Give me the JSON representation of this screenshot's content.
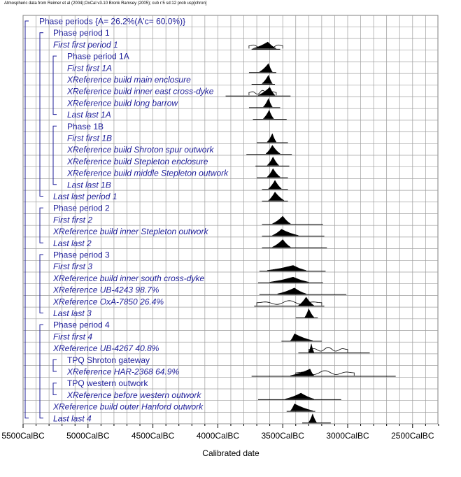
{
  "header_text": "Atmospheric data from Reimer et al (2004);OxCal v3.10 Bronk Ramsey (2005); cub r:5 sd:12 prob usp[chron]",
  "chart_data": {
    "type": "multiple-plot",
    "xlabel": "Calibrated date",
    "xlim": [
      5500,
      2700
    ],
    "xticks": [
      {
        "value": 5500,
        "label": "5500CalBC"
      },
      {
        "value": 5000,
        "label": "5000CalBC"
      },
      {
        "value": 4500,
        "label": "4500CalBC"
      },
      {
        "value": 4000,
        "label": "4000CalBC"
      },
      {
        "value": 3500,
        "label": "3500CalBC"
      },
      {
        "value": 3000,
        "label": "3000CalBC"
      },
      {
        "value": 2500,
        "label": "2500CalBC"
      }
    ],
    "grid": true,
    "rows": [
      {
        "label": "Phase periods {A= 26.2%(A'c= 60.0%)}",
        "italic": false,
        "indent": 0
      },
      {
        "label": "Phase period 1",
        "italic": false,
        "indent": 1
      },
      {
        "label": "First first period 1",
        "italic": true,
        "indent": 1,
        "peak": 3615,
        "start": 3730,
        "end": 3550,
        "prior_start": 3760,
        "prior_end": 3500,
        "bar_start": 3740,
        "bar_end": 3520
      },
      {
        "label": "Phase period 1A",
        "italic": false,
        "indent": 2
      },
      {
        "label": "First first 1A",
        "italic": true,
        "indent": 2,
        "peak": 3610,
        "start": 3680,
        "end": 3580,
        "bar_start": 3760,
        "bar_end": 3550
      },
      {
        "label": "XReference build main enclosure",
        "italic": true,
        "indent": 2,
        "peak": 3610,
        "start": 3660,
        "end": 3580,
        "bar_start": 3740,
        "bar_end": 3560
      },
      {
        "label": "XReference build inner east cross-dyke",
        "italic": true,
        "indent": 2,
        "peak": 3600,
        "start": 3690,
        "end": 3560,
        "prior_start": 3760,
        "prior_end": 3550,
        "bar_start": 3940,
        "bar_end": 3440
      },
      {
        "label": "XReference build long barrow",
        "italic": true,
        "indent": 2,
        "peak": 3610,
        "start": 3650,
        "end": 3580,
        "bar_start": 3760,
        "bar_end": 3520
      },
      {
        "label": "Last last 1A",
        "italic": true,
        "indent": 2,
        "peak": 3605,
        "start": 3650,
        "end": 3570,
        "bar_start": 3730,
        "bar_end": 3470
      },
      {
        "label": "Phase 1B",
        "italic": false,
        "indent": 2
      },
      {
        "label": "First first 1B",
        "italic": true,
        "indent": 2,
        "peak": 3580,
        "start": 3620,
        "end": 3550,
        "bar_start": 3700,
        "bar_end": 3460
      },
      {
        "label": "XReference build Shroton spur outwork",
        "italic": true,
        "indent": 2,
        "peak": 3580,
        "start": 3630,
        "end": 3520,
        "bar_start": 3780,
        "bar_end": 3430
      },
      {
        "label": "XReference build Stepleton enclosure",
        "italic": true,
        "indent": 2,
        "peak": 3575,
        "start": 3620,
        "end": 3530,
        "bar_start": 3710,
        "bar_end": 3450
      },
      {
        "label": "XReference build middle Stepleton outwork",
        "italic": true,
        "indent": 2,
        "peak": 3575,
        "start": 3620,
        "end": 3520,
        "bar_start": 3700,
        "bar_end": 3460
      },
      {
        "label": "Last last 1B",
        "italic": true,
        "indent": 2,
        "peak": 3560,
        "start": 3610,
        "end": 3510,
        "bar_start": 3660,
        "bar_end": 3460
      },
      {
        "label": "Last last period 1",
        "italic": true,
        "indent": 1,
        "peak": 3560,
        "start": 3610,
        "end": 3490,
        "bar_start": 3660,
        "bar_end": 3460
      },
      {
        "label": "Phase period 2",
        "italic": false,
        "indent": 1
      },
      {
        "label": "First first 2",
        "italic": true,
        "indent": 1,
        "peak": 3500,
        "start": 3580,
        "end": 3440,
        "bar_start": 3660,
        "bar_end": 3190
      },
      {
        "label": "XReference build inner Stepleton outwork",
        "italic": true,
        "indent": 1,
        "peak": 3510,
        "start": 3580,
        "end": 3380,
        "bar_start": 3660,
        "bar_end": 3180
      },
      {
        "label": "Last last 2",
        "italic": true,
        "indent": 1,
        "peak": 3500,
        "start": 3580,
        "end": 3440,
        "bar_start": 3660,
        "bar_end": 3160
      },
      {
        "label": "Phase period 3",
        "italic": false,
        "indent": 1
      },
      {
        "label": "First first 3",
        "italic": true,
        "indent": 1,
        "peak": 3420,
        "start": 3620,
        "end": 3320,
        "bar_start": 3680,
        "bar_end": 3170
      },
      {
        "label": "XReference build inner south cross-dyke",
        "italic": true,
        "indent": 1,
        "peak": 3420,
        "start": 3600,
        "end": 3300,
        "bar_start": 3690,
        "bar_end": 3190
      },
      {
        "label": "XReference UB-4243   98.7%",
        "italic": true,
        "indent": 1,
        "peak": 3410,
        "start": 3540,
        "end": 3320,
        "bar_start": 3680,
        "bar_end": 3010
      },
      {
        "label": "XReference OxA-7850   26.4%",
        "italic": true,
        "indent": 1,
        "peak": 3320,
        "start": 3380,
        "end": 3260,
        "prior_start": 3700,
        "prior_end": 3200,
        "bar_start": 3720,
        "bar_end": 3180
      },
      {
        "label": "Last last 3",
        "italic": true,
        "indent": 1,
        "peak": 3300,
        "start": 3330,
        "end": 3260,
        "bar_start": 3400,
        "bar_end": 3230
      },
      {
        "label": "Phase period 4",
        "italic": false,
        "indent": 1
      },
      {
        "label": "First first 4",
        "italic": true,
        "indent": 1,
        "peak": 3410,
        "start": 3440,
        "end": 3270,
        "bar_start": 3510,
        "bar_end": 3200
      },
      {
        "label": "XReference UB-4267   40.8%",
        "italic": true,
        "indent": 1,
        "peak": 3280,
        "start": 3300,
        "end": 3260,
        "prior_start": 3300,
        "prior_end": 3000,
        "bar_start": 3380,
        "bar_end": 2830
      },
      {
        "label": "TPQ Shroton gateway",
        "italic": false,
        "indent": 2
      },
      {
        "label": "XReference HAR-2368   64.9%",
        "italic": true,
        "indent": 2,
        "peak": 3290,
        "start": 3440,
        "end": 3260,
        "prior_start": 3400,
        "prior_end": 2950,
        "bar_start": 3740,
        "bar_end": 2630
      },
      {
        "label": "TPQ western outwork",
        "italic": false,
        "indent": 2
      },
      {
        "label": "XReference before western outwork",
        "italic": true,
        "indent": 2,
        "peak": 3360,
        "start": 3480,
        "end": 3260,
        "bar_start": 3690,
        "bar_end": 3050
      },
      {
        "label": "XReference build outer Hanford outwork",
        "italic": true,
        "indent": 1,
        "peak": 3410,
        "start": 3440,
        "end": 3270,
        "bar_start": 3470,
        "bar_end": 3250
      },
      {
        "label": "Last last 4",
        "italic": true,
        "indent": 1,
        "peak": 3270,
        "start": 3300,
        "end": 3240,
        "bar_start": 3350,
        "bar_end": 3130
      }
    ]
  }
}
